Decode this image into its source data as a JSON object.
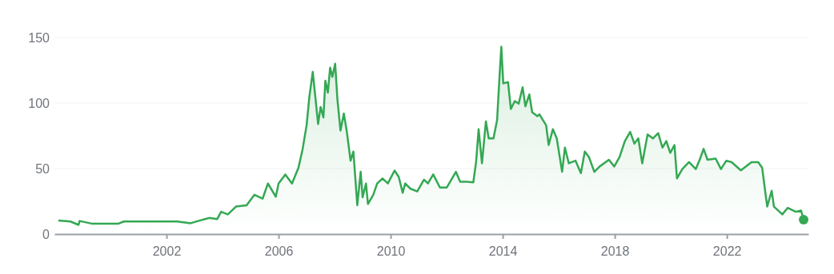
{
  "chart_data": {
    "type": "area",
    "x": [
      1998.14,
      1998.57,
      1998.86,
      1998.9,
      1999.33,
      2000.29,
      2000.48,
      2001.43,
      2002.38,
      2002.86,
      2003.52,
      2003.81,
      2003.95,
      2004.19,
      2004.48,
      2004.86,
      2005.14,
      2005.43,
      2005.62,
      2005.9,
      2006.0,
      2006.24,
      2006.48,
      2006.71,
      2006.86,
      2007.0,
      2007.1,
      2007.22,
      2007.33,
      2007.41,
      2007.5,
      2007.6,
      2007.67,
      2007.76,
      2007.84,
      2007.92,
      2008.02,
      2008.1,
      2008.21,
      2008.33,
      2008.43,
      2008.57,
      2008.67,
      2008.81,
      2008.93,
      2009.0,
      2009.12,
      2009.19,
      2009.38,
      2009.52,
      2009.71,
      2009.9,
      2010.14,
      2010.29,
      2010.43,
      2010.52,
      2010.71,
      2010.95,
      2011.19,
      2011.33,
      2011.52,
      2011.76,
      2012.0,
      2012.33,
      2012.48,
      2012.71,
      2012.95,
      2013.05,
      2013.14,
      2013.26,
      2013.4,
      2013.5,
      2013.67,
      2013.8,
      2013.88,
      2013.95,
      2014.02,
      2014.19,
      2014.29,
      2014.43,
      2014.57,
      2014.71,
      2014.81,
      2014.95,
      2015.05,
      2015.24,
      2015.31,
      2015.55,
      2015.64,
      2015.79,
      2015.93,
      2016.12,
      2016.22,
      2016.36,
      2016.6,
      2016.79,
      2016.93,
      2017.08,
      2017.27,
      2017.46,
      2017.79,
      2017.98,
      2018.17,
      2018.36,
      2018.55,
      2018.7,
      2018.84,
      2018.98,
      2019.17,
      2019.36,
      2019.55,
      2019.7,
      2019.84,
      2019.98,
      2020.13,
      2020.22,
      2020.41,
      2020.65,
      2020.89,
      2021.03,
      2021.17,
      2021.31,
      2021.6,
      2021.79,
      2021.98,
      2022.17,
      2022.5,
      2022.88,
      2023.12,
      2023.26,
      2023.36,
      2023.44,
      2023.6,
      2023.68,
      2023.98,
      2024.17,
      2024.46,
      2024.65,
      2024.74
    ],
    "series": [
      {
        "color": "#34a853",
        "values": [
          10.3,
          9.6,
          7,
          10,
          8,
          8,
          9.6,
          9.6,
          9.6,
          8.3,
          12.3,
          11.5,
          17,
          15,
          21,
          22,
          30,
          27,
          38.6,
          28.5,
          38.6,
          45.5,
          38.6,
          50.6,
          65,
          83,
          105,
          123.8,
          101,
          84,
          97,
          89,
          117,
          108,
          127,
          120,
          130,
          103,
          79,
          92,
          79,
          56,
          63,
          22,
          47.5,
          28,
          38.6,
          23,
          30,
          38.6,
          42.5,
          38.6,
          48.5,
          43.6,
          31.5,
          38.6,
          34.6,
          32.5,
          41.5,
          38.6,
          45.5,
          35.5,
          35.5,
          47.5,
          40,
          40,
          39.5,
          55,
          80,
          54,
          86,
          73,
          73,
          87,
          118,
          143,
          115,
          116,
          95.5,
          101.5,
          99.5,
          112,
          97.5,
          106.6,
          93,
          90,
          91.4,
          83,
          68,
          80,
          73,
          47.5,
          66,
          54,
          56,
          46.5,
          63,
          58.7,
          47.5,
          51.6,
          56.7,
          51.6,
          58.7,
          71,
          78,
          69,
          73,
          54,
          76,
          73,
          77,
          66,
          71,
          62,
          68,
          42.5,
          49.6,
          54.9,
          49.6,
          56.7,
          65,
          56.7,
          57.6,
          49.6,
          56,
          54.9,
          48.6,
          54.9,
          54.9,
          50.6,
          34,
          21,
          33,
          21,
          15,
          20,
          17,
          18,
          11
        ]
      }
    ],
    "xlim": [
      1998.0,
      2024.91
    ],
    "xticks": [
      2002,
      2006,
      2010,
      2014,
      2018,
      2022
    ],
    "ylim": [
      0,
      150
    ],
    "yticks": [
      0,
      50,
      100,
      150
    ],
    "grid": "y",
    "marker": "none",
    "line_style": "solid"
  }
}
